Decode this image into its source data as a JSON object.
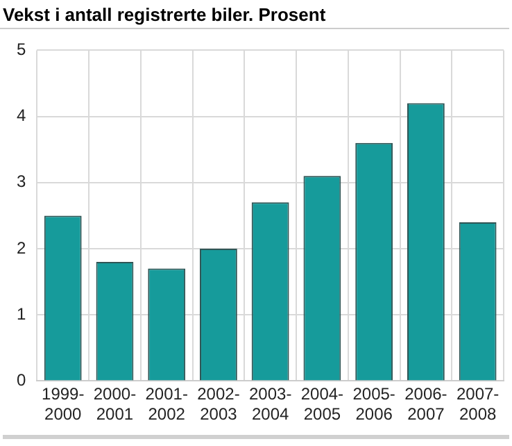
{
  "chart_data": {
    "type": "bar",
    "title": "Vekst i antall registrerte biler. Prosent",
    "categories": [
      "1999-2000",
      "2000-2001",
      "2001-2002",
      "2002-2003",
      "2003-2004",
      "2004-2005",
      "2005-2006",
      "2006-2007",
      "2007-2008"
    ],
    "values": [
      2.5,
      1.8,
      1.7,
      2.0,
      2.7,
      3.1,
      3.6,
      4.2,
      2.4
    ],
    "color": "#169b9b",
    "ylim": [
      0,
      5
    ],
    "yticks": [
      0,
      1,
      2,
      3,
      4,
      5
    ],
    "grid": true
  }
}
